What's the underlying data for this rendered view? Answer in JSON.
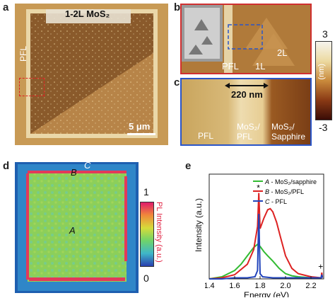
{
  "panels": {
    "a": {
      "letter": "a",
      "title": "1-2L MoS₂",
      "pfl_label": "PFL",
      "scale_bar": "5 μm"
    },
    "b": {
      "letter": "b",
      "labels": {
        "pfl": "PFL",
        "one_l": "1L",
        "two_l": "2L"
      }
    },
    "c": {
      "letter": "c",
      "distance": "220 nm",
      "labels": {
        "pfl": "PFL",
        "mos2_pfl_line1": "MoS₂/",
        "mos2_pfl_line2": "PFL",
        "mos2_sapphire_line1": "MoS₂/",
        "mos2_sapphire_line2": "Sapphire"
      }
    },
    "height_colorbar": {
      "max": "3",
      "min": "-3",
      "label": "(nm)",
      "colors": [
        "#f6f4ee",
        "#ecd9a0",
        "#c98a3c",
        "#8a3a15",
        "#3a0c06"
      ]
    },
    "d": {
      "letter": "d",
      "point_labels": {
        "a": "A",
        "b": "B",
        "c": "C"
      },
      "colorbar": {
        "max": "1",
        "min": "0",
        "label": "PL Intensity (a.u.)"
      }
    },
    "e": {
      "letter": "e",
      "peak_star": "*",
      "raman_plus": "+"
    }
  },
  "chart_data": {
    "type": "line",
    "xlabel": "Energy (eV)",
    "ylabel": "Intensity (a.u.)",
    "xlim": [
      1.4,
      2.3
    ],
    "ylim": [
      0,
      1.0
    ],
    "xticks": [
      "1.4",
      "1.6",
      "1.8",
      "2.0",
      "2.2"
    ],
    "legend_position": "top-right",
    "legend": [
      {
        "italic": "A",
        "text": " - MoS₂/sapphire",
        "color": "#33bb33"
      },
      {
        "italic": "B",
        "text": " - MoS₂/PFL",
        "color": "#dd2222"
      },
      {
        "italic": "C",
        "text": " - PFL",
        "color": "#2244bb"
      }
    ],
    "series": [
      {
        "color": "#33bb33",
        "x": [
          1.4,
          1.5,
          1.6,
          1.65,
          1.7,
          1.75,
          1.78,
          1.8,
          1.83,
          1.86,
          1.9,
          1.95,
          2.0,
          2.05,
          2.1,
          2.2,
          2.28
        ],
        "y": [
          0.0,
          0.02,
          0.08,
          0.14,
          0.22,
          0.3,
          0.33,
          0.31,
          0.26,
          0.22,
          0.17,
          0.1,
          0.05,
          0.03,
          0.02,
          0.01,
          0.01
        ]
      },
      {
        "color": "#dd2222",
        "x": [
          1.4,
          1.5,
          1.6,
          1.7,
          1.75,
          1.78,
          1.79,
          1.8,
          1.83,
          1.86,
          1.88,
          1.9,
          1.93,
          1.96,
          2.0,
          2.05,
          2.1,
          2.2,
          2.28,
          2.285,
          2.29
        ],
        "y": [
          0.0,
          0.01,
          0.04,
          0.14,
          0.28,
          0.5,
          0.82,
          0.48,
          0.58,
          0.66,
          0.67,
          0.64,
          0.54,
          0.4,
          0.22,
          0.1,
          0.05,
          0.02,
          0.01,
          0.06,
          0.01
        ]
      },
      {
        "color": "#2244bb",
        "x": [
          1.4,
          1.5,
          1.6,
          1.7,
          1.76,
          1.78,
          1.79,
          1.8,
          1.82,
          1.9,
          2.0,
          2.1,
          2.2,
          2.28,
          2.285,
          2.29
        ],
        "y": [
          0.0,
          0.0,
          0.01,
          0.01,
          0.02,
          0.08,
          0.62,
          0.05,
          0.02,
          0.01,
          0.01,
          0.01,
          0.01,
          0.01,
          0.04,
          0.01
        ]
      }
    ]
  }
}
